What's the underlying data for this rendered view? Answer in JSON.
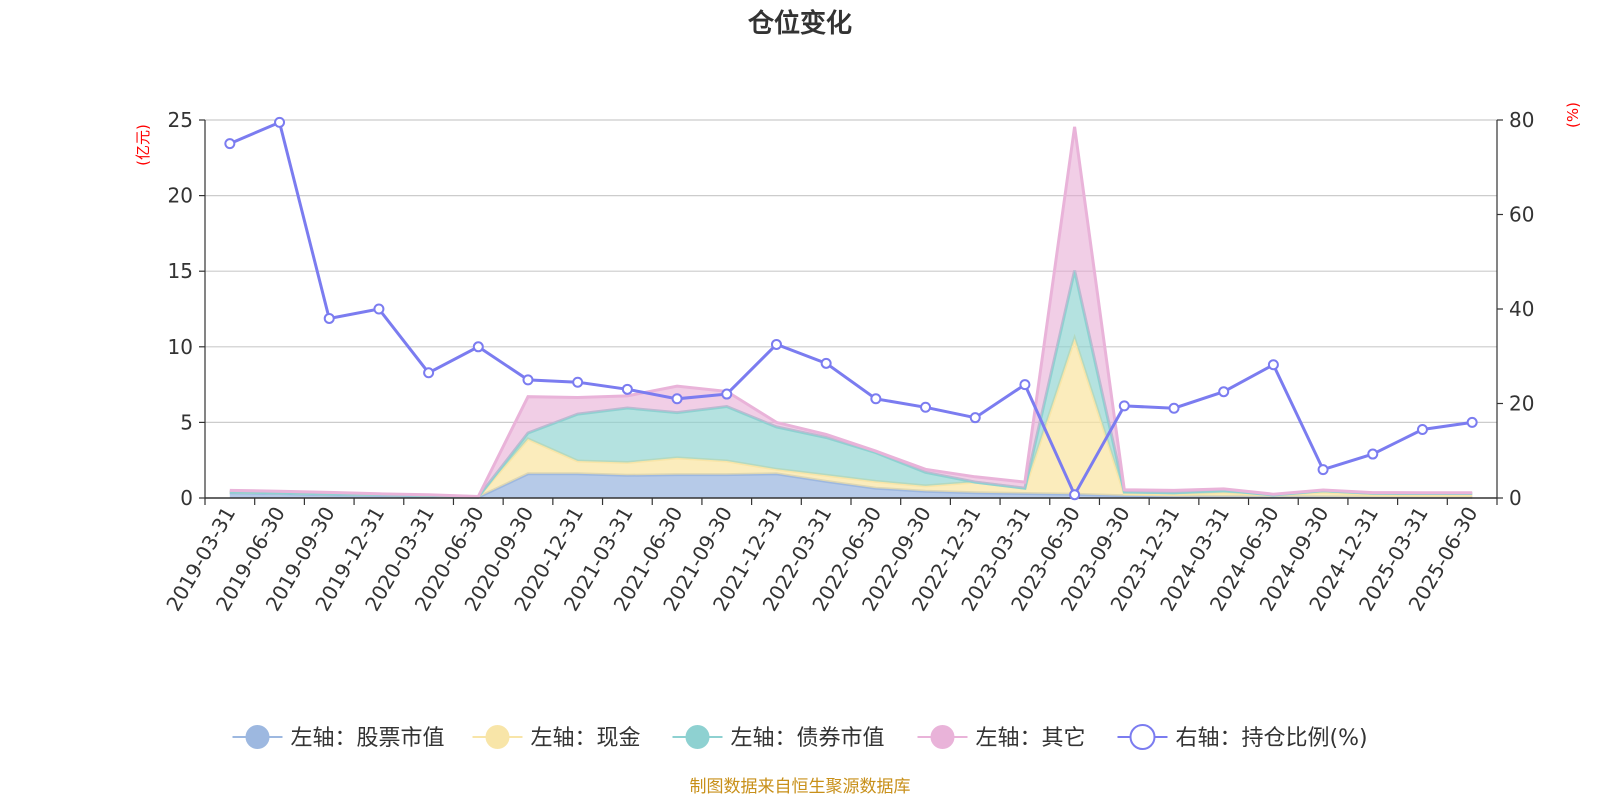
{
  "chart_data": {
    "type": "area",
    "title": "仓位变化",
    "left_axis_unit": "(亿元)",
    "right_axis_unit": "(%)",
    "ylim_left": [
      0,
      25
    ],
    "ylim_right": [
      0,
      80
    ],
    "yticks_left": [
      "0",
      "5",
      "10",
      "15",
      "20",
      "25"
    ],
    "yticks_right": [
      "0",
      "20",
      "40",
      "60",
      "80"
    ],
    "categories": [
      "2019-03-31",
      "2019-06-30",
      "2019-09-30",
      "2019-12-31",
      "2020-03-31",
      "2020-06-30",
      "2020-09-30",
      "2020-12-31",
      "2021-03-31",
      "2021-06-30",
      "2021-09-30",
      "2021-12-31",
      "2022-03-31",
      "2022-06-30",
      "2022-09-30",
      "2022-12-31",
      "2023-03-31",
      "2023-06-30",
      "2023-09-30",
      "2023-12-31",
      "2024-03-31",
      "2024-06-30",
      "2024-09-30",
      "2024-12-31",
      "2025-03-31",
      "2025-06-30"
    ],
    "series": [
      {
        "name": "左轴：股票市值",
        "axis": "left",
        "color": "#9db8e0",
        "fill": "rgba(110,150,210,0.5)",
        "values": [
          0.35,
          0.3,
          0.22,
          0.18,
          0.12,
          0.05,
          1.6,
          1.6,
          1.5,
          1.55,
          1.55,
          1.6,
          1.1,
          0.65,
          0.45,
          0.35,
          0.3,
          0.25,
          0.15,
          0.1,
          0.1,
          0.08,
          0.08,
          0.06,
          0.05,
          0.05
        ]
      },
      {
        "name": "左轴：现金",
        "axis": "left",
        "color": "#f8e5a8",
        "fill": "rgba(250,228,160,0.7)",
        "values": [
          0.05,
          0.05,
          0.05,
          0.05,
          0.05,
          0.03,
          2.3,
          0.85,
          0.85,
          1.1,
          0.9,
          0.3,
          0.4,
          0.45,
          0.35,
          0.7,
          0.35,
          10.3,
          0.15,
          0.15,
          0.25,
          0.12,
          0.3,
          0.15,
          0.15,
          0.15
        ]
      },
      {
        "name": "左轴：债券市值",
        "axis": "left",
        "color": "#8ed1d1",
        "fill": "rgba(140,210,208,0.65)",
        "values": [
          0,
          0,
          0,
          0,
          0,
          0,
          0.4,
          3.1,
          3.6,
          3.0,
          3.6,
          2.8,
          2.5,
          1.9,
          0.9,
          0,
          0,
          4.5,
          0.1,
          0.1,
          0.15,
          0,
          0.1,
          0.1,
          0.1,
          0.1
        ]
      },
      {
        "name": "左轴：其它",
        "axis": "left",
        "color": "#e9b3d9",
        "fill": "rgba(230,165,210,0.55)",
        "values": [
          0.1,
          0.1,
          0.1,
          0.05,
          0.05,
          0.02,
          2.4,
          1.1,
          0.8,
          1.75,
          1.0,
          0.3,
          0.2,
          0.1,
          0.2,
          0.35,
          0.4,
          9.5,
          0.15,
          0.15,
          0.1,
          0.05,
          0.05,
          0.05,
          0.05,
          0.05
        ]
      },
      {
        "name": "右轴：持仓比例(%)",
        "axis": "right",
        "color": "#7b7cf0",
        "values": [
          75,
          79.5,
          38,
          40,
          26.5,
          32,
          25,
          24.5,
          23,
          21,
          22,
          32.5,
          28.5,
          21,
          19.2,
          17,
          24,
          0.7,
          19.5,
          19,
          22.5,
          28.2,
          6,
          9.3,
          14.5,
          16
        ]
      }
    ]
  },
  "source_text": "制图数据来自恒生聚源数据库"
}
